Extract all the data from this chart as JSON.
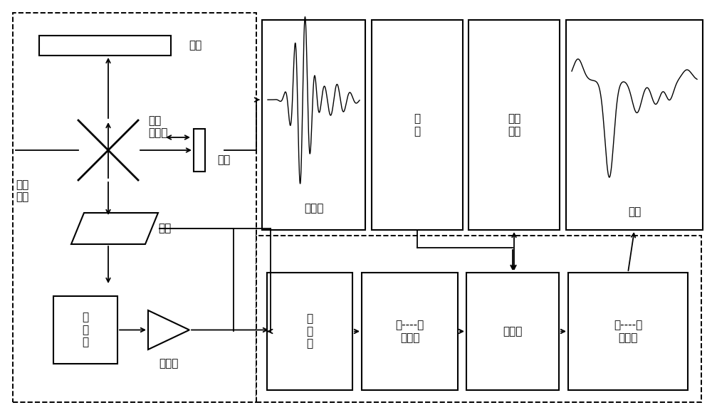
{
  "bg_color": "#ffffff",
  "line_color": "#000000",
  "labels": {
    "ding_jing": "定镜",
    "guang_shu_fen_shu_qi": "光束\n分束器",
    "dong_jing": "动镜",
    "hong_wai_guang_yuan": "红外\n光源",
    "yang_pin": "样品",
    "tan_ce_qi": "探\n测\n器",
    "fang_da_qi": "放大器",
    "gan_she_tu": "干涉图",
    "jian_pan": "键\n盘",
    "wai_wei_she_bei": "外围\n设备",
    "guang_pu": "光谱",
    "lv_guang_qi": "滤\n光\n器",
    "mo_shu": "模----数\n转换器",
    "ji_suan_ji": "计算机",
    "shu_mo": "数----模\n转换器"
  },
  "font_size": 11
}
